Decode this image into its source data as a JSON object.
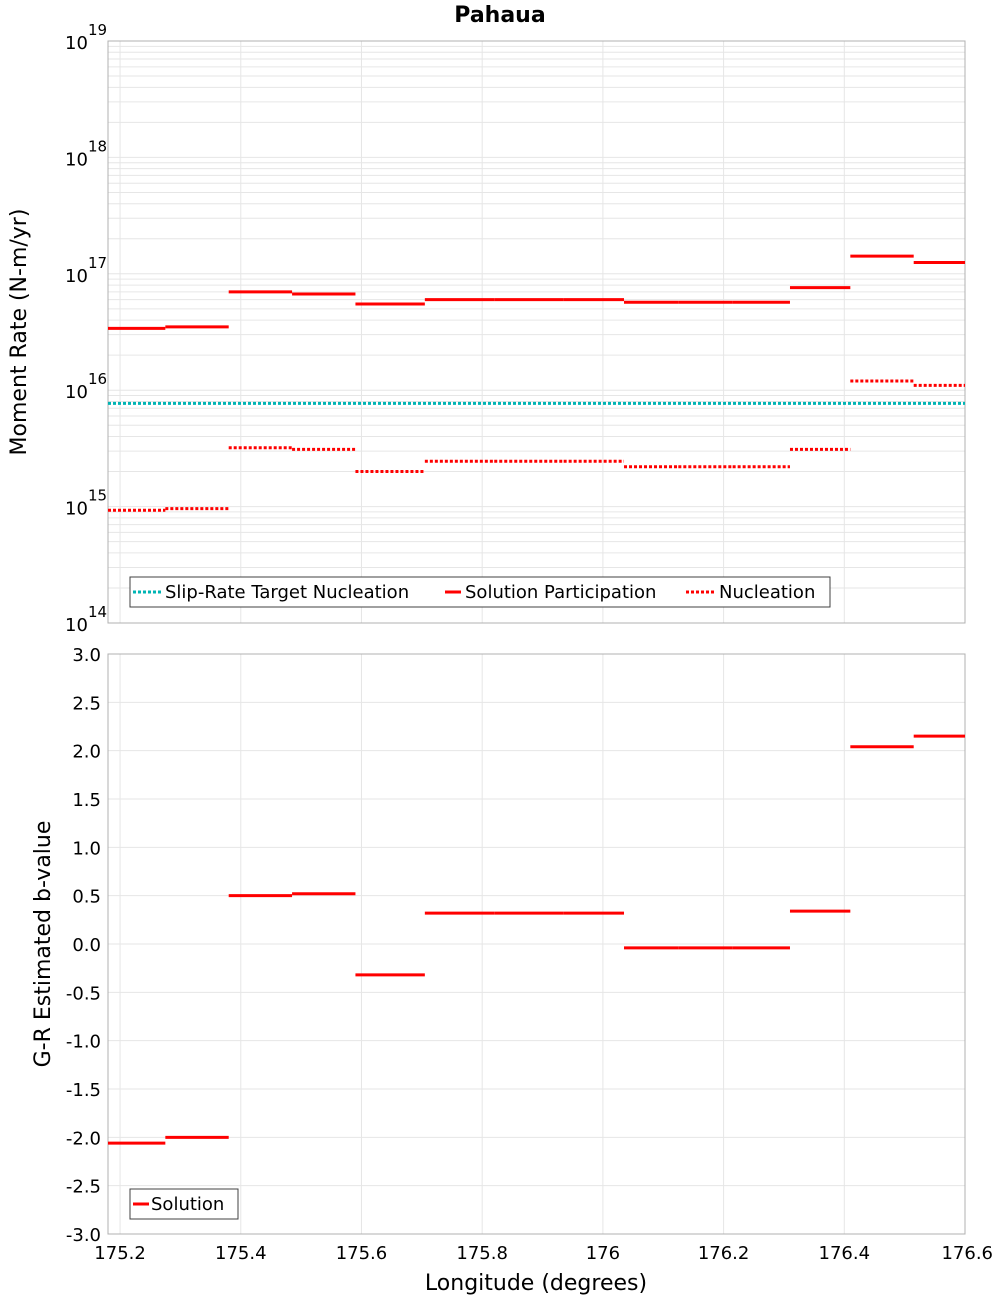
{
  "title": "Pahaua",
  "colors": {
    "solution": "#ff0000",
    "nucleation": "#ff0000",
    "target": "#00b4b4",
    "grid": "#e6e6e6",
    "frame": "#b0b0b0"
  },
  "x_axis": {
    "label": "Longitude (degrees)",
    "range": [
      175.18,
      176.6
    ],
    "ticks": [
      175.2,
      175.4,
      175.6,
      175.8,
      176,
      176.2,
      176.4,
      176.6
    ],
    "tick_labels": [
      "175.2",
      "175.4",
      "175.6",
      "175.8",
      "176",
      "176.2",
      "176.4",
      "176.6"
    ]
  },
  "chart_data": [
    {
      "type": "line",
      "title": "Pahaua",
      "ylabel": "Moment Rate (N-m/yr)",
      "xlabel": "",
      "y_scale": "log",
      "ylim": [
        100000000000000.0,
        1e+19
      ],
      "y_ticks": [
        {
          "base": "10",
          "exp": "14"
        },
        {
          "base": "10",
          "exp": "15"
        },
        {
          "base": "10",
          "exp": "16"
        },
        {
          "base": "10",
          "exp": "17"
        },
        {
          "base": "10",
          "exp": "18"
        },
        {
          "base": "10",
          "exp": "19"
        }
      ],
      "grid": true,
      "legend_placement": "bottom-left",
      "legend": [
        "Slip-Rate Target Nucleation",
        "Solution Participation",
        "Nucleation"
      ],
      "series": [
        {
          "name": "Slip-Rate Target Nucleation",
          "style": "dotted",
          "segments": [
            [
              175.18,
              176.6,
              7700000000000000.0
            ]
          ]
        },
        {
          "name": "Solution Participation",
          "style": "solid",
          "segments": [
            [
              175.18,
              175.275,
              3.4e+16
            ],
            [
              175.275,
              175.38,
              3.5e+16
            ],
            [
              175.38,
              175.485,
              7e+16
            ],
            [
              175.485,
              175.59,
              6.7e+16
            ],
            [
              175.59,
              175.705,
              5.5e+16
            ],
            [
              175.705,
              175.82,
              6e+16
            ],
            [
              175.82,
              175.935,
              6e+16
            ],
            [
              175.935,
              176.035,
              6e+16
            ],
            [
              176.035,
              176.125,
              5.7e+16
            ],
            [
              176.125,
              176.215,
              5.7e+16
            ],
            [
              176.215,
              176.31,
              5.7e+16
            ],
            [
              176.31,
              176.41,
              7.6e+16
            ],
            [
              176.41,
              176.515,
              1.42e+17
            ],
            [
              176.515,
              176.6,
              1.25e+17
            ]
          ]
        },
        {
          "name": "Nucleation",
          "style": "dotted",
          "segments": [
            [
              175.18,
              175.275,
              930000000000000.0
            ],
            [
              175.275,
              175.38,
              960000000000000.0
            ],
            [
              175.38,
              175.485,
              3200000000000000.0
            ],
            [
              175.485,
              175.59,
              3100000000000000.0
            ],
            [
              175.59,
              175.705,
              2000000000000000.0
            ],
            [
              175.705,
              175.82,
              2450000000000000.0
            ],
            [
              175.82,
              175.935,
              2450000000000000.0
            ],
            [
              175.935,
              176.035,
              2450000000000000.0
            ],
            [
              176.035,
              176.125,
              2200000000000000.0
            ],
            [
              176.125,
              176.215,
              2200000000000000.0
            ],
            [
              176.215,
              176.31,
              2200000000000000.0
            ],
            [
              176.31,
              176.41,
              3100000000000000.0
            ],
            [
              176.41,
              176.515,
              1.2e+16
            ],
            [
              176.515,
              176.6,
              1.1e+16
            ]
          ]
        }
      ]
    },
    {
      "type": "line",
      "title": "",
      "ylabel": "G-R Estimated b-value",
      "xlabel": "Longitude (degrees)",
      "y_scale": "linear",
      "ylim": [
        -3.0,
        3.0
      ],
      "y_ticks": [
        "-3.0",
        "-2.5",
        "-2.0",
        "-1.5",
        "-1.0",
        "-0.5",
        "0.0",
        "0.5",
        "1.0",
        "1.5",
        "2.0",
        "2.5",
        "3.0"
      ],
      "grid": true,
      "legend_placement": "bottom-left",
      "legend": [
        "Solution"
      ],
      "series": [
        {
          "name": "Solution",
          "style": "solid",
          "segments": [
            [
              175.18,
              175.275,
              -2.06
            ],
            [
              175.275,
              175.38,
              -2.0
            ],
            [
              175.38,
              175.485,
              0.5
            ],
            [
              175.485,
              175.59,
              0.52
            ],
            [
              175.59,
              175.705,
              -0.32
            ],
            [
              175.705,
              175.82,
              0.32
            ],
            [
              175.82,
              175.935,
              0.32
            ],
            [
              175.935,
              176.035,
              0.32
            ],
            [
              176.035,
              176.125,
              -0.04
            ],
            [
              176.125,
              176.215,
              -0.04
            ],
            [
              176.215,
              176.31,
              -0.04
            ],
            [
              176.31,
              176.41,
              0.34
            ],
            [
              176.41,
              176.515,
              2.04
            ],
            [
              176.515,
              176.6,
              2.15
            ]
          ]
        }
      ]
    }
  ]
}
